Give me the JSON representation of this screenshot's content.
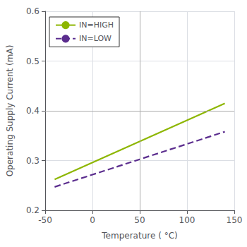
{
  "chart_data": {
    "type": "line",
    "xlabel": "Temperature ( °C)",
    "ylabel": "Operating Supply Current (mA)",
    "xlim": [
      -50,
      150
    ],
    "ylim": [
      0.2,
      0.6
    ],
    "xticks": [
      -50,
      0,
      50,
      100,
      150
    ],
    "yticks": [
      0.2,
      0.3,
      0.4,
      0.5,
      0.6
    ],
    "grid": true,
    "legend": "upper left",
    "series": [
      {
        "name": "IN=HIGH",
        "color": "#8db600",
        "line_style": "solid",
        "x": [
          -40,
          140
        ],
        "values": [
          0.262,
          0.415
        ]
      },
      {
        "name": "IN=LOW",
        "color": "#5b2d8e",
        "line_style": "dashed",
        "x": [
          -40,
          140
        ],
        "values": [
          0.247,
          0.358
        ]
      }
    ],
    "reference_lines": [
      {
        "axis": "x",
        "value": 50,
        "color": "#aaaaaa"
      },
      {
        "axis": "y",
        "value": 0.4,
        "color": "#aaaaaa"
      }
    ]
  }
}
